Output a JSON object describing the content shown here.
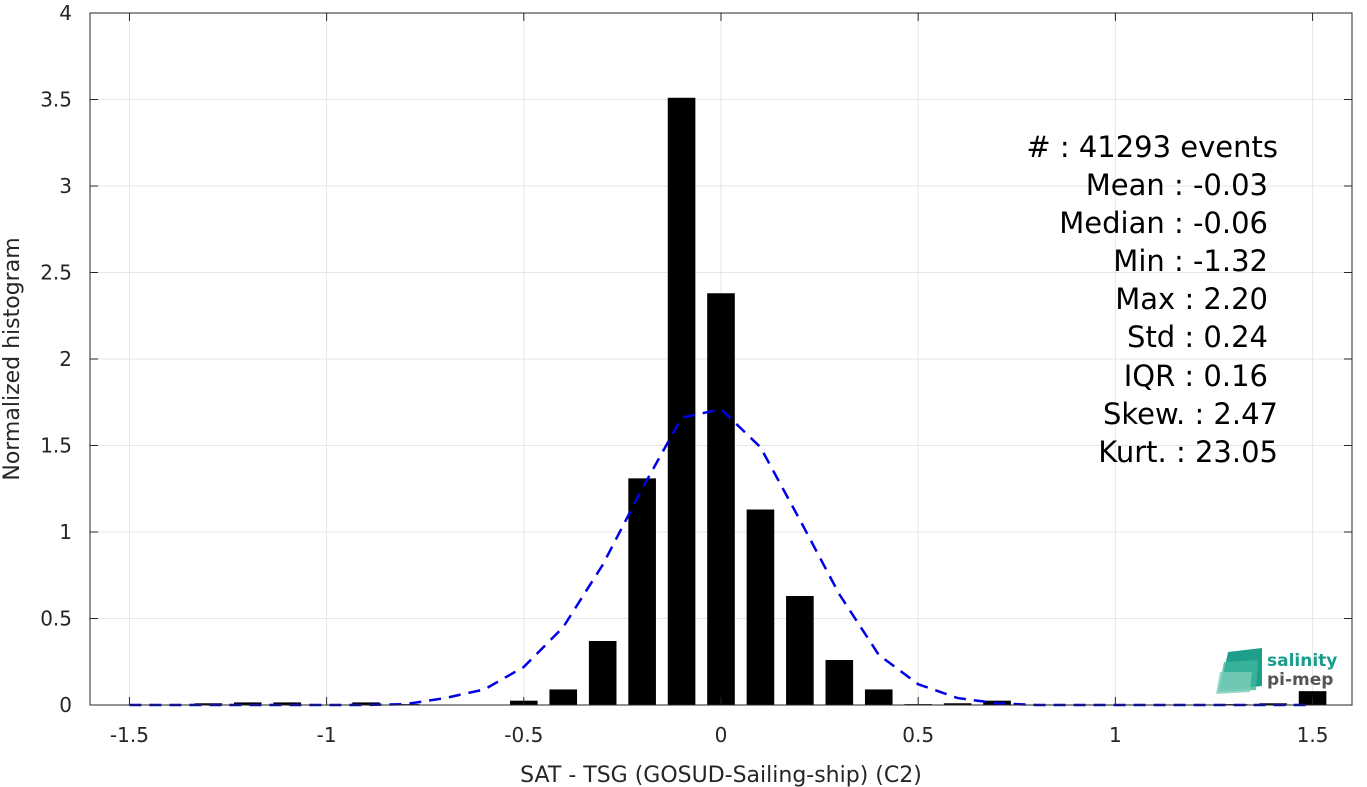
{
  "chart_data": {
    "type": "bar",
    "title": "",
    "xlabel": "SAT - TSG (GOSUD-Sailing-ship) (C2)",
    "ylabel": "Normalized histogram",
    "xlim": [
      -1.6,
      1.6
    ],
    "ylim": [
      0,
      4
    ],
    "x_ticks": [
      -1.5,
      -1,
      -0.5,
      0,
      0.5,
      1,
      1.5
    ],
    "x_tick_labels": [
      "-1.5",
      "-1",
      "-0.5",
      "0",
      "0.5",
      "1",
      "1.5"
    ],
    "y_ticks": [
      0,
      0.5,
      1,
      1.5,
      2,
      2.5,
      3,
      3.5,
      4
    ],
    "y_tick_labels": [
      "0",
      "0.5",
      "1",
      "1.5",
      "2",
      "2.5",
      "3",
      "3.5",
      "4"
    ],
    "grid": true,
    "bar_width": 0.07,
    "histogram": {
      "name": "",
      "color": "#000000",
      "x": [
        -1.5,
        -1.4,
        -1.3,
        -1.2,
        -1.1,
        -1.0,
        -0.9,
        -0.8,
        -0.7,
        -0.6,
        -0.5,
        -0.4,
        -0.3,
        -0.2,
        -0.1,
        0.0,
        0.1,
        0.2,
        0.3,
        0.4,
        0.5,
        0.6,
        0.7,
        0.8,
        0.9,
        1.0,
        1.1,
        1.2,
        1.3,
        1.4,
        1.5
      ],
      "values": [
        0.0,
        0.0,
        0.01,
        0.015,
        0.015,
        0.0,
        0.015,
        0.005,
        0.0,
        0.0,
        0.025,
        0.09,
        0.37,
        1.31,
        3.51,
        2.38,
        1.13,
        0.63,
        0.26,
        0.09,
        0.005,
        0.01,
        0.025,
        0.0,
        0.0,
        0.0,
        0.0,
        0.0,
        0.005,
        0.01,
        0.08
      ]
    },
    "fit_curve": {
      "name": "",
      "style": "dashed",
      "color": "#0000e6",
      "x": [
        -1.5,
        -1.4,
        -1.3,
        -1.2,
        -1.1,
        -1.0,
        -0.9,
        -0.8,
        -0.7,
        -0.6,
        -0.5,
        -0.4,
        -0.3,
        -0.2,
        -0.1,
        0.0,
        0.1,
        0.2,
        0.3,
        0.4,
        0.5,
        0.6,
        0.7,
        0.8,
        0.9,
        1.0,
        1.1,
        1.2,
        1.3,
        1.4,
        1.5
      ],
      "values": [
        0.0,
        0.0,
        0.0,
        0.0,
        0.0,
        0.0,
        0.0,
        0.005,
        0.04,
        0.09,
        0.22,
        0.45,
        0.81,
        1.25,
        1.66,
        1.71,
        1.49,
        1.07,
        0.64,
        0.29,
        0.12,
        0.04,
        0.01,
        0.0,
        0.0,
        0.0,
        0.0,
        0.0,
        0.0,
        0.0,
        0.0
      ]
    },
    "annotations": [
      "#  : 41293 events",
      "Mean : -0.03",
      "Median : -0.06",
      "Min : -1.32",
      "Max : 2.20",
      "Std : 0.24",
      "IQR : 0.16",
      "Skew. : 2.47",
      "Kurt. : 23.05"
    ]
  },
  "logo": {
    "line1": "salinity",
    "line2": "pi-mep"
  },
  "colors": {
    "bar": "#000000",
    "fit": "#0000e6",
    "grid": "#e6e6e6",
    "axis": "#262626",
    "logo": "#1a9c8c"
  }
}
